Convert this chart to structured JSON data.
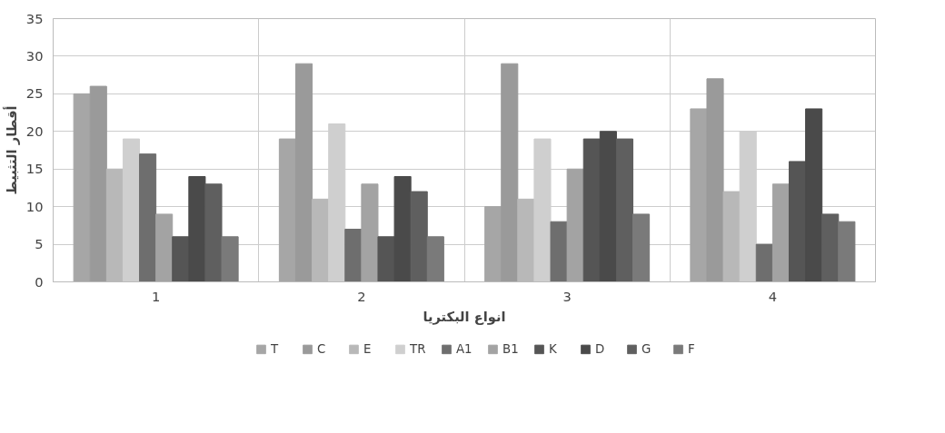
{
  "chart_data": {
    "type": "bar",
    "xlabel": "انواع البكتريا",
    "ylabel": "أقطار التثبيط",
    "categories": [
      "1",
      "2",
      "3",
      "4"
    ],
    "ylim": [
      0,
      35
    ],
    "yticks": [
      0,
      5,
      10,
      15,
      20,
      25,
      30,
      35
    ],
    "grid": true,
    "legend": "bottom",
    "series": [
      {
        "name": "T",
        "color": "#a6a6a6",
        "values": [
          25,
          19,
          10,
          23
        ]
      },
      {
        "name": "C",
        "color": "#9a9a9a",
        "values": [
          26,
          29,
          29,
          27
        ]
      },
      {
        "name": "E",
        "color": "#b8b8b8",
        "values": [
          15,
          11,
          11,
          12
        ]
      },
      {
        "name": "TR",
        "color": "#cfcfcf",
        "values": [
          19,
          21,
          19,
          20
        ]
      },
      {
        "name": "A1",
        "color": "#6e6e6e",
        "values": [
          17,
          7,
          8,
          5
        ]
      },
      {
        "name": "B1",
        "color": "#a3a3a3",
        "values": [
          9,
          13,
          15,
          13
        ]
      },
      {
        "name": "K",
        "color": "#555555",
        "values": [
          6,
          6,
          19,
          16
        ]
      },
      {
        "name": "D",
        "color": "#4a4a4a",
        "values": [
          14,
          14,
          20,
          23
        ]
      },
      {
        "name": "G",
        "color": "#5f5f5f",
        "values": [
          13,
          12,
          19,
          9
        ]
      },
      {
        "name": "F",
        "color": "#7a7a7a",
        "values": [
          6,
          6,
          9,
          8
        ]
      }
    ]
  }
}
